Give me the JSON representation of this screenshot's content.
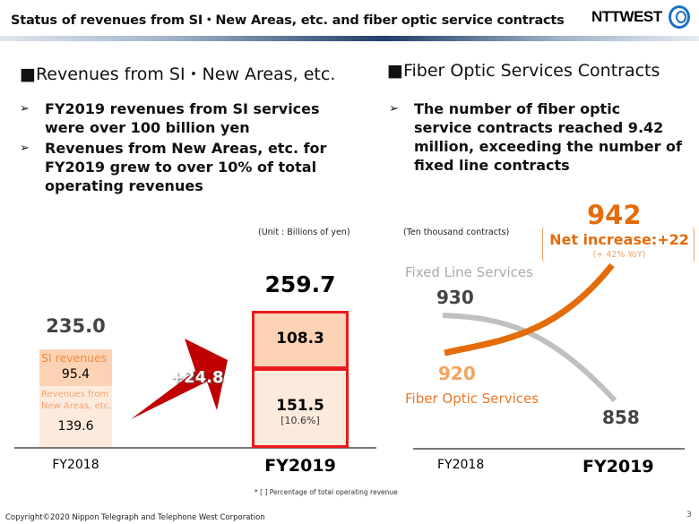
{
  "header": {
    "title": "Status of revenues from SI・New Areas, etc. and fiber optic service contracts",
    "logo_text": "NTTWEST"
  },
  "left": {
    "heading": "■Revenues from SI・New Areas, etc.",
    "bullets": [
      "FY2019 revenues from SI services were over 100 billion yen",
      "Revenues from New Areas, etc. for FY2019 grew to over 10% of total operating revenues"
    ],
    "unit": "(Unit : Billions of yen)",
    "footnote": "* [ ]  Percentage of total operating revenue"
  },
  "right": {
    "heading": "■Fiber Optic Services Contracts",
    "bullets": [
      "The number of fiber optic service contracts reached 9.42 million, exceeding the number of fixed line contracts"
    ],
    "unit": "(Ten thousand contracts)"
  },
  "chart_data": [
    {
      "type": "bar",
      "stacked": true,
      "categories": [
        "FY2018",
        "FY2019"
      ],
      "series": [
        {
          "name": "Revenues from New Areas, etc.",
          "values": [
            139.6,
            151.5
          ]
        },
        {
          "name": "SI revenues",
          "values": [
            95.4,
            108.3
          ]
        }
      ],
      "totals": [
        "235.0",
        "259.7"
      ],
      "labels": {
        "si": "SI revenues",
        "new_areas": "Revenues from New Areas, etc.",
        "fy2018_si": "95.4",
        "fy2018_new": "139.6",
        "fy2019_si": "108.3",
        "fy2019_new": "151.5",
        "fy2019_pct": "[10.6%]",
        "increase": "+24.8"
      },
      "colors": {
        "si": "#fbd3b4",
        "new_areas": "#fcebdd",
        "highlight": "#e81c1c",
        "arrow": "#c00000"
      }
    },
    {
      "type": "line",
      "categories": [
        "FY2018",
        "FY2019"
      ],
      "series": [
        {
          "name": "Fixed Line Services",
          "values": [
            930,
            858
          ],
          "color": "#c0c0c0"
        },
        {
          "name": "Fiber Optic Services",
          "values": [
            920,
            942
          ],
          "color": "#e46c0a"
        }
      ],
      "labels": {
        "fixed_start": "930",
        "fixed_end": "858",
        "fiber_start": "920",
        "fiber_end": "942",
        "net_increase": "Net increase:+22",
        "yoy": "(+ 42% YoY)"
      }
    }
  ],
  "footer": {
    "copyright": "Copyright©2020 Nippon Telegraph and Telephone West Corporation",
    "page": "3"
  }
}
